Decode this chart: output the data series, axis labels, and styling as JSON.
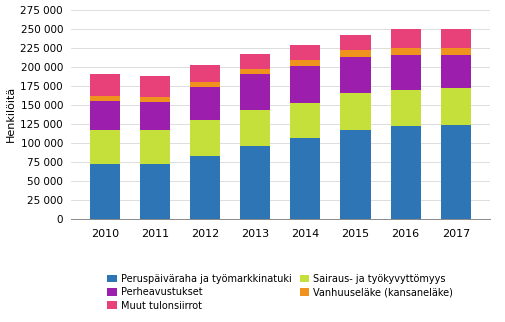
{
  "years": [
    2010,
    2011,
    2012,
    2013,
    2014,
    2015,
    2016,
    2017
  ],
  "series": {
    "Peruspäiväraha ja työmarkkinatuki": [
      72000,
      72000,
      83000,
      96000,
      106000,
      117000,
      122000,
      124000
    ],
    "Sairaus- ja työkyvyttömyys": [
      45000,
      45000,
      47000,
      47000,
      47000,
      48000,
      48000,
      48000
    ],
    "Perheavustukset": [
      38000,
      37000,
      43000,
      47000,
      48000,
      48000,
      45000,
      43000
    ],
    "Vanhuuseläke (kansaneläke)": [
      6000,
      6000,
      7000,
      7000,
      8000,
      9000,
      9000,
      9000
    ],
    "Muut tulonsiirrot": [
      30000,
      28000,
      22000,
      20000,
      20000,
      20000,
      25000,
      25000
    ]
  },
  "colors": {
    "Peruspäiväraha ja työmarkkinatuki": "#2e75b6",
    "Sairaus- ja työkyvyttömyys": "#c5e03b",
    "Perheavustukset": "#9b1fac",
    "Vanhuuseläke (kansaneläke)": "#f0921e",
    "Muut tulonsiirrot": "#e8417a"
  },
  "stack_order": [
    "Peruspäiväraha ja työmarkkinatuki",
    "Sairaus- ja työkyvyttömyys",
    "Perheavustukset",
    "Vanhuuseläke (kansaneläke)",
    "Muut tulonsiirrot"
  ],
  "ylabel": "Henkilöitä",
  "ylim": [
    0,
    275000
  ],
  "yticks": [
    0,
    25000,
    50000,
    75000,
    100000,
    125000,
    150000,
    175000,
    200000,
    225000,
    250000,
    275000
  ],
  "left_legend": [
    "Peruspäiväraha ja työmarkkinatuki",
    "Perheavustukset",
    "Muut tulonsiirrot"
  ],
  "right_legend": [
    "Sairaus- ja työkyvyttömyys",
    "Vanhuuseläke (kansaneläke)"
  ],
  "background_color": "#ffffff",
  "bar_width": 0.6
}
